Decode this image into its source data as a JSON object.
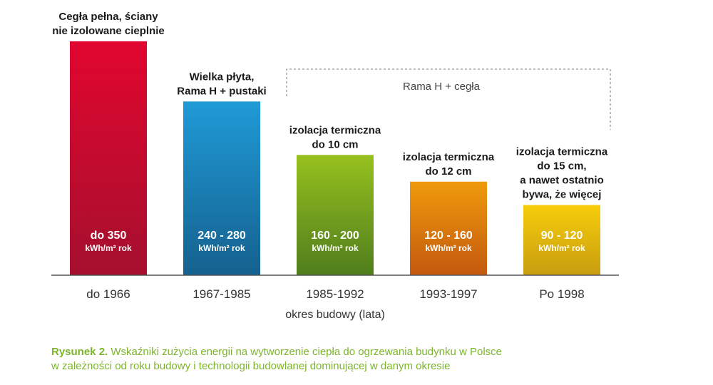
{
  "chart_data": {
    "type": "bar",
    "categories": [
      "do 1966",
      "1967-1985",
      "1985-1992",
      "1993-1997",
      "Po 1998"
    ],
    "values": [
      350,
      260,
      180,
      140,
      105
    ],
    "bar_labels": [
      "do 350",
      "240 - 280",
      "160 - 200",
      "120 - 160",
      "90 - 120"
    ],
    "unit_label": "kWh/m² rok",
    "annotations": [
      [
        "Cegła pełna, ściany",
        "nie izolowane cieplnie"
      ],
      [
        "Wielka płyta,",
        "Rama H + pustaki"
      ],
      [
        "izolacja termiczna",
        "do 10 cm"
      ],
      [
        "izolacja termiczna",
        "do 12 cm"
      ],
      [
        "izolacja termiczna",
        "do 15 cm,",
        "a nawet ostatnio",
        "bywa, że więcej"
      ]
    ],
    "bracket_label": "Rama H + cegła",
    "xlabel": "okres budowy (lata)",
    "ylim": [
      0,
      350
    ],
    "colors": [
      [
        "#e1062f",
        "#a5102e"
      ],
      [
        "#1f9ad6",
        "#15618f"
      ],
      [
        "#97c11f",
        "#4f7d1c"
      ],
      [
        "#ef9a0c",
        "#c3590e"
      ],
      [
        "#f7cd0b",
        "#c79d10"
      ]
    ]
  },
  "caption": {
    "label": "Rysunek 2.",
    "line1": "Wskaźniki zużycia energii na wytworzenie ciepła do ogrzewania budynku w Polsce",
    "line2": "w zależności od roku budowy i technologii budowlanej dominującej w danym okresie"
  }
}
